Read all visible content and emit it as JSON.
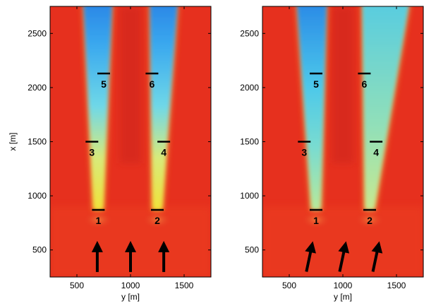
{
  "chart_data": [
    {
      "type": "heatmap",
      "title": "",
      "xlabel": "y [m]",
      "ylabel": "x [m]",
      "xlim": [
        250,
        1750
      ],
      "ylim": [
        250,
        2750
      ],
      "xticks": [
        500,
        1000,
        1500
      ],
      "yticks": [
        500,
        1000,
        1500,
        2000,
        2500
      ],
      "grid": false,
      "colors": {
        "background": "#e6301e",
        "wake_near": "#e8e84a",
        "wake_far": "#2aa0e8"
      },
      "turbines": [
        {
          "label": "1",
          "x": 870,
          "y": 700
        },
        {
          "label": "2",
          "x": 870,
          "y": 1250
        },
        {
          "label": "3",
          "x": 1500,
          "y": 640
        },
        {
          "label": "4",
          "x": 1500,
          "y": 1310
        },
        {
          "label": "5",
          "x": 2130,
          "y": 750
        },
        {
          "label": "6",
          "x": 2130,
          "y": 1200
        }
      ],
      "wind_arrows": [
        {
          "x": 440,
          "y": 690,
          "angle_deg": 0
        },
        {
          "x": 440,
          "y": 1000,
          "angle_deg": 0
        },
        {
          "x": 440,
          "y": 1310,
          "angle_deg": 0
        }
      ]
    },
    {
      "type": "heatmap",
      "title": "",
      "xlabel": "y [m]",
      "ylabel": "",
      "xlim": [
        250,
        1750
      ],
      "ylim": [
        250,
        2750
      ],
      "xticks": [
        500,
        1000,
        1500
      ],
      "yticks": [
        500,
        1000,
        1500,
        2000,
        2500
      ],
      "grid": false,
      "colors": {
        "background": "#e6301e",
        "wake_near": "#8ee0c0",
        "wake_far": "#2aa0e8"
      },
      "turbines": [
        {
          "label": "1",
          "x": 870,
          "y": 750
        },
        {
          "label": "2",
          "x": 870,
          "y": 1250
        },
        {
          "label": "3",
          "x": 1500,
          "y": 640
        },
        {
          "label": "4",
          "x": 1500,
          "y": 1310
        },
        {
          "label": "5",
          "x": 2130,
          "y": 750
        },
        {
          "label": "6",
          "x": 2130,
          "y": 1200
        }
      ],
      "wind_arrows": [
        {
          "x": 440,
          "y": 690,
          "angle_deg": 12
        },
        {
          "x": 440,
          "y": 1000,
          "angle_deg": 12
        },
        {
          "x": 440,
          "y": 1310,
          "angle_deg": 12
        }
      ]
    }
  ]
}
